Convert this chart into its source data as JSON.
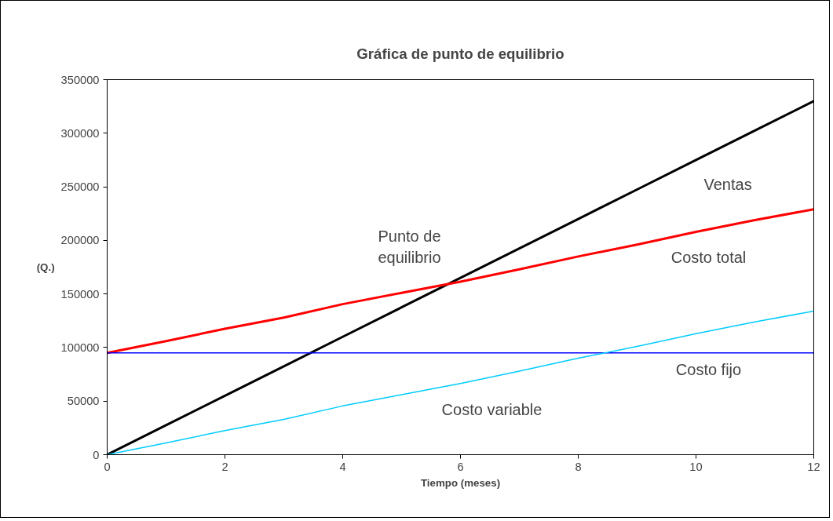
{
  "chart_data": {
    "type": "line",
    "title": "Gráfica de punto de equilibrio",
    "xlabel": "Tiempo (meses)",
    "ylabel": "(Q.)",
    "x": [
      0,
      1,
      2,
      3,
      4,
      5,
      6,
      7,
      8,
      9,
      10,
      11,
      12
    ],
    "series": [
      {
        "name": "Ventas",
        "color": "#000000",
        "values": [
          0,
          27500,
          55000,
          82500,
          110000,
          137500,
          165000,
          192500,
          220000,
          247500,
          275000,
          302500,
          330000
        ]
      },
      {
        "name": "Costo total",
        "color": "#ff0000",
        "values": [
          95000,
          106000,
          117500,
          128000,
          140500,
          151000,
          161500,
          173000,
          185000,
          196000,
          208000,
          219000,
          229000
        ]
      },
      {
        "name": "Costo fijo",
        "color": "#0000ff",
        "values": [
          95000,
          95000,
          95000,
          95000,
          95000,
          95000,
          95000,
          95000,
          95000,
          95000,
          95000,
          95000,
          95000
        ]
      },
      {
        "name": "Costo variable",
        "color": "#00ccff",
        "values": [
          0,
          11000,
          22500,
          33000,
          45500,
          56000,
          66500,
          78000,
          90000,
          101000,
          113000,
          124000,
          134000
        ]
      }
    ],
    "annotations": [
      {
        "text": "Punto de\nequilibrio",
        "x": 5.8,
        "y": 161000
      }
    ],
    "xlim": [
      0,
      12
    ],
    "xticks": [
      0,
      2,
      4,
      6,
      8,
      10,
      12
    ],
    "ylim": [
      0,
      350000
    ],
    "yticks": [
      0,
      50000,
      100000,
      150000,
      200000,
      250000,
      300000,
      350000
    ],
    "grid": false,
    "marker": "none",
    "line_style": "solid"
  }
}
